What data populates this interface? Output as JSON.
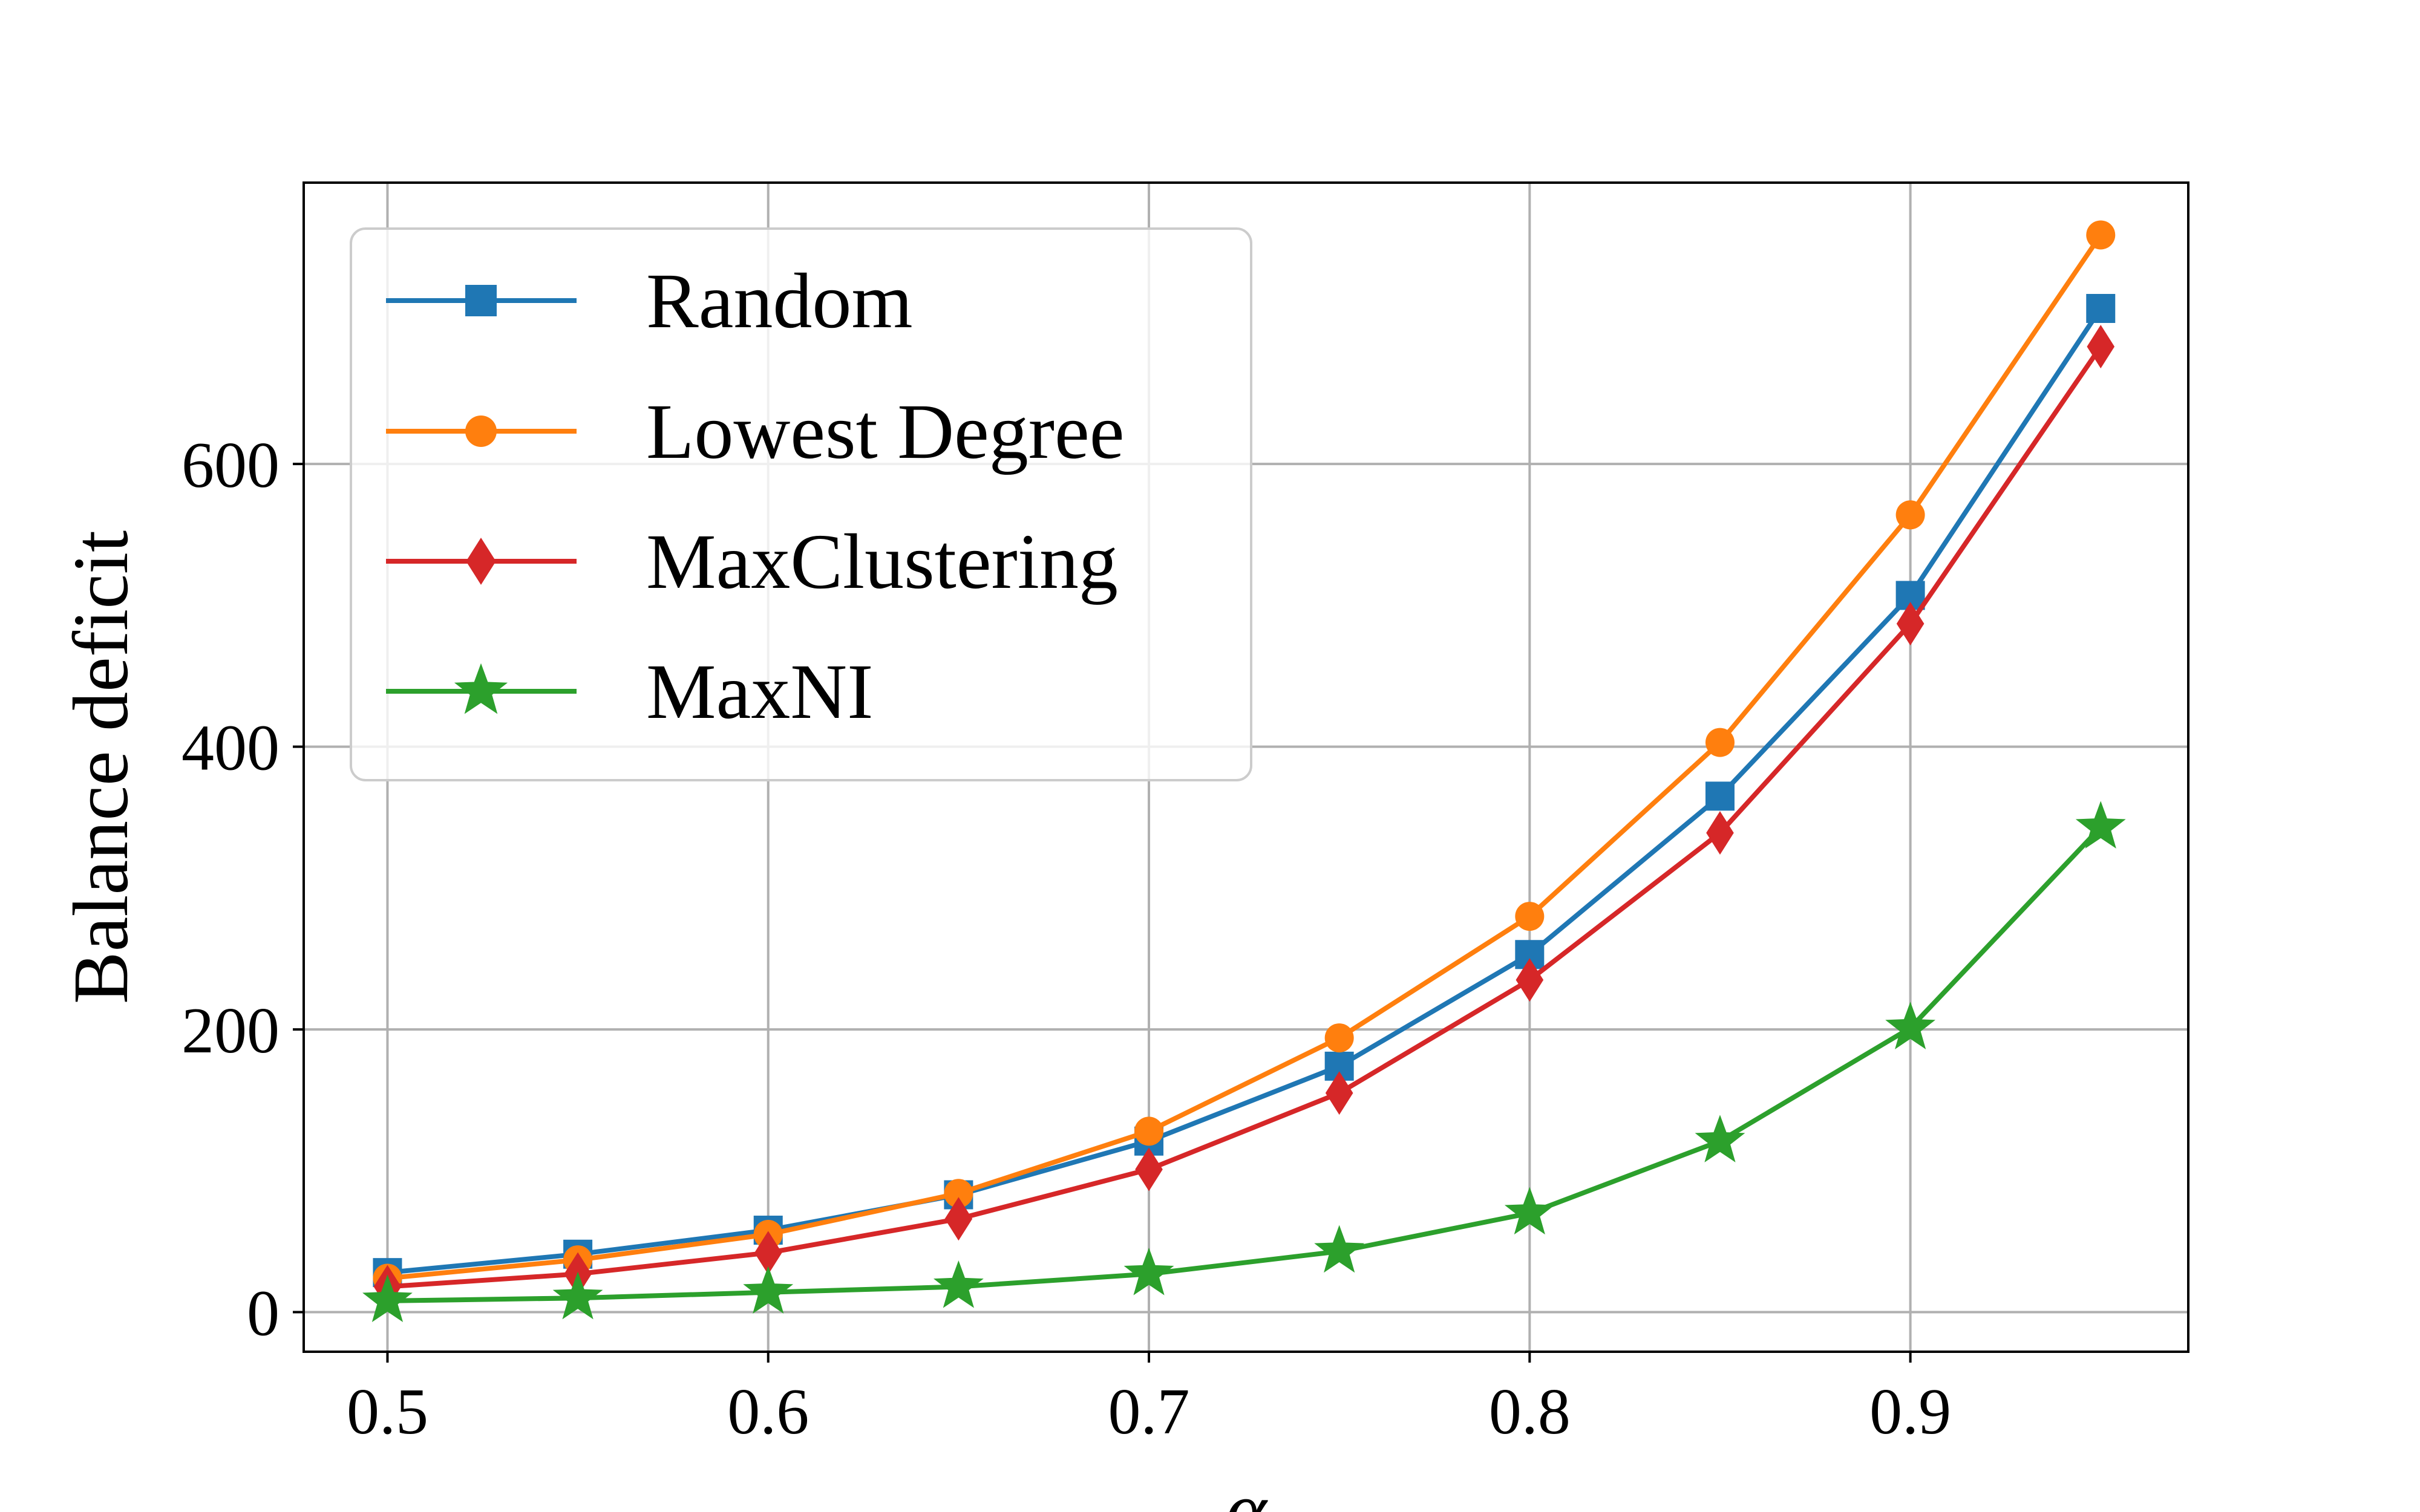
{
  "chart_data": {
    "type": "line",
    "title": "",
    "xlabel": "α",
    "ylabel": "Balance deficit",
    "x": [
      0.5,
      0.55,
      0.6,
      0.65,
      0.7,
      0.75,
      0.8,
      0.85,
      0.9,
      0.95
    ],
    "xlim": [
      0.478,
      0.973
    ],
    "ylim": [
      -28,
      799
    ],
    "xticks": [
      0.5,
      0.6,
      0.7,
      0.8,
      0.9
    ],
    "xtick_labels": [
      "0.5",
      "0.6",
      "0.7",
      "0.8",
      "0.9"
    ],
    "yticks": [
      0,
      200,
      400,
      600
    ],
    "ytick_labels": [
      "0",
      "200",
      "400",
      "600"
    ],
    "grid": true,
    "legend_position": "top-left",
    "series": [
      {
        "name": "Random",
        "color": "#1f77b4",
        "marker": "square",
        "values": [
          28,
          41,
          58,
          83,
          121,
          174,
          253,
          365,
          507,
          710
        ]
      },
      {
        "name": "Lowest Degree",
        "color": "#ff7f0e",
        "marker": "circle",
        "values": [
          24,
          37,
          55,
          84,
          128,
          194,
          280,
          403,
          564,
          762
        ]
      },
      {
        "name": "MaxClustering",
        "color": "#d62728",
        "marker": "diamond",
        "values": [
          18,
          27,
          42,
          66,
          101,
          155,
          235,
          339,
          487,
          683
        ]
      },
      {
        "name": "MaxNI",
        "color": "#2ca02c",
        "marker": "star",
        "values": [
          8,
          10,
          14,
          18,
          27,
          43,
          70,
          121,
          201,
          343
        ]
      }
    ]
  }
}
